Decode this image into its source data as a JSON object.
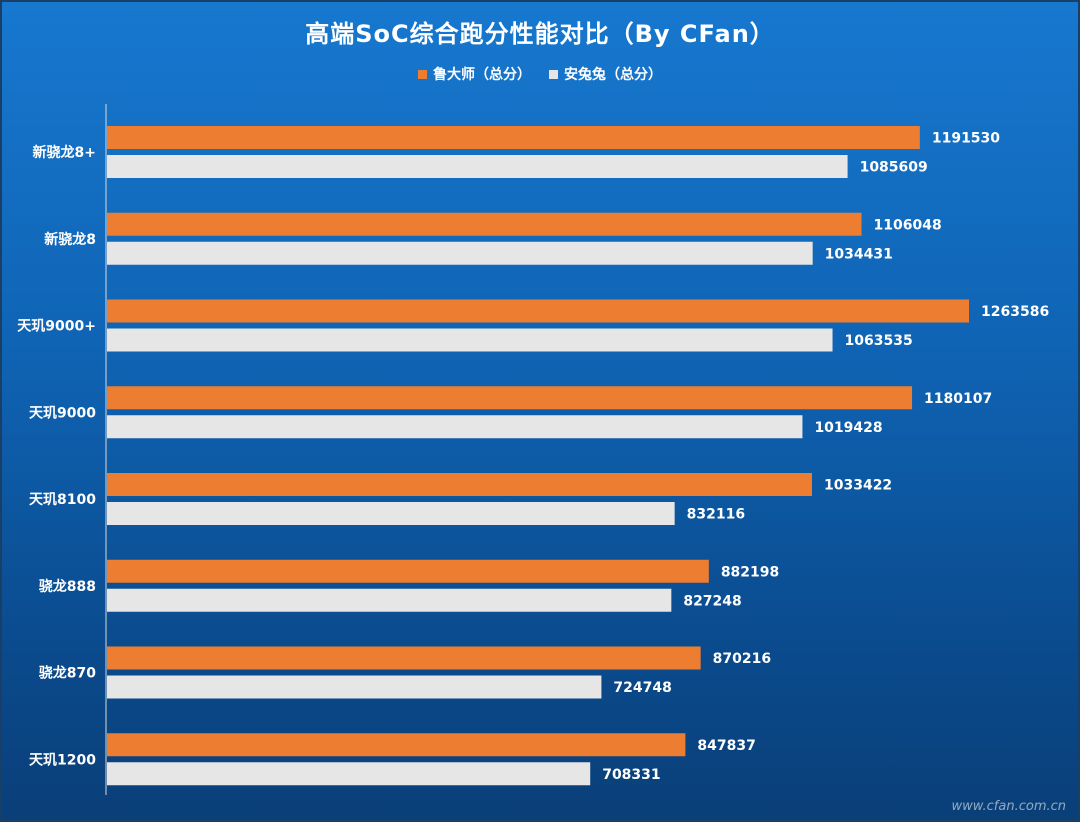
{
  "chart_data": {
    "type": "bar",
    "orientation": "horizontal",
    "title": "高端SoC综合跑分性能对比（By CFan）",
    "categories": [
      "新骁龙8+",
      "新骁龙8",
      "天玑9000+",
      "天玑9000",
      "天玑8100",
      "骁龙888",
      "骁龙870",
      "天玑1200"
    ],
    "series": [
      {
        "name": "鲁大师（总分）",
        "color": "#ed7d31",
        "values": [
          1191530,
          1106048,
          1263586,
          1180107,
          1033422,
          882198,
          870216,
          847837
        ]
      },
      {
        "name": "安兔兔（总分）",
        "color": "#e6e6e6",
        "values": [
          1085609,
          1034431,
          1063535,
          1019428,
          832116,
          827248,
          724748,
          708331
        ]
      }
    ],
    "xlim": [
      0,
      1400000
    ],
    "legend_position": "top",
    "grid": false,
    "data_labels": true
  },
  "watermark": "www.cfan.com.cn"
}
